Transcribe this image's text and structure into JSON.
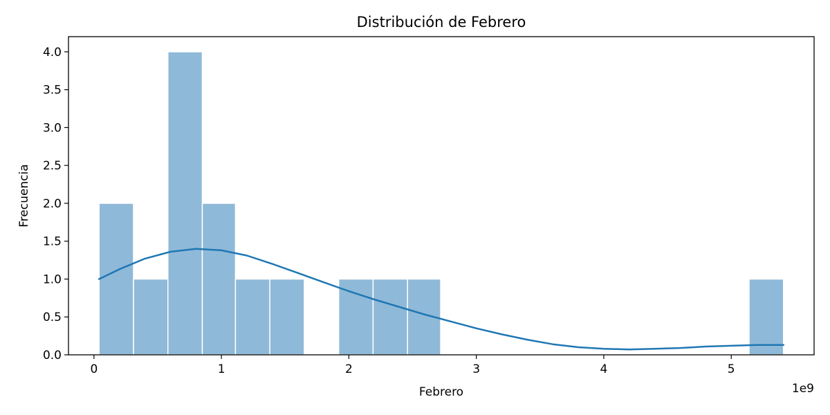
{
  "chart_data": {
    "type": "bar",
    "title": "Distribución de Febrero",
    "xlabel": "Febrero",
    "ylabel": "Frecuencia",
    "x_offset_label": "1e9",
    "xlim": [
      -0.2,
      5.65
    ],
    "ylim": [
      0,
      4.2
    ],
    "x_ticks": [
      0,
      1,
      2,
      3,
      4,
      5
    ],
    "x_tick_labels": [
      "0",
      "1",
      "2",
      "3",
      "4",
      "5"
    ],
    "y_ticks": [
      0,
      0.5,
      1,
      1.5,
      2,
      2.5,
      3,
      3.5,
      4
    ],
    "y_tick_labels": [
      "0.0",
      "0.5",
      "1.0",
      "1.5",
      "2.0",
      "2.5",
      "3.0",
      "3.5",
      "4.0"
    ],
    "grid": false,
    "bins": [
      {
        "x0": 0.04,
        "x1": 0.31,
        "count": 2
      },
      {
        "x0": 0.31,
        "x1": 0.58,
        "count": 1
      },
      {
        "x0": 0.58,
        "x1": 0.85,
        "count": 4
      },
      {
        "x0": 0.85,
        "x1": 1.11,
        "count": 2
      },
      {
        "x0": 1.11,
        "x1": 1.38,
        "count": 1
      },
      {
        "x0": 1.38,
        "x1": 1.65,
        "count": 1
      },
      {
        "x0": 1.65,
        "x1": 1.92,
        "count": 0
      },
      {
        "x0": 1.92,
        "x1": 2.19,
        "count": 1
      },
      {
        "x0": 2.19,
        "x1": 2.46,
        "count": 1
      },
      {
        "x0": 2.46,
        "x1": 2.72,
        "count": 1
      },
      {
        "x0": 2.72,
        "x1": 2.99,
        "count": 0
      },
      {
        "x0": 2.99,
        "x1": 3.26,
        "count": 0
      },
      {
        "x0": 3.26,
        "x1": 3.53,
        "count": 0
      },
      {
        "x0": 3.53,
        "x1": 3.8,
        "count": 0
      },
      {
        "x0": 3.8,
        "x1": 4.07,
        "count": 0
      },
      {
        "x0": 4.07,
        "x1": 4.33,
        "count": 0
      },
      {
        "x0": 4.33,
        "x1": 4.6,
        "count": 0
      },
      {
        "x0": 4.6,
        "x1": 4.87,
        "count": 0
      },
      {
        "x0": 4.87,
        "x1": 5.14,
        "count": 0
      },
      {
        "x0": 5.14,
        "x1": 5.41,
        "count": 1
      }
    ],
    "kde": {
      "x": [
        0.04,
        0.2,
        0.4,
        0.6,
        0.8,
        1.0,
        1.2,
        1.4,
        1.6,
        1.8,
        2.0,
        2.2,
        2.4,
        2.6,
        2.8,
        3.0,
        3.2,
        3.4,
        3.6,
        3.8,
        4.0,
        4.2,
        4.4,
        4.6,
        4.8,
        5.0,
        5.2,
        5.41
      ],
      "y": [
        1.0,
        1.13,
        1.27,
        1.36,
        1.4,
        1.38,
        1.31,
        1.2,
        1.08,
        0.96,
        0.84,
        0.73,
        0.63,
        0.53,
        0.44,
        0.35,
        0.27,
        0.2,
        0.14,
        0.1,
        0.08,
        0.07,
        0.08,
        0.09,
        0.11,
        0.12,
        0.13,
        0.13
      ]
    },
    "colors": {
      "bar_fill": "#8fb9d8",
      "bar_edge": "#ffffff",
      "line": "#1f77b4",
      "axis": "#000000"
    }
  }
}
